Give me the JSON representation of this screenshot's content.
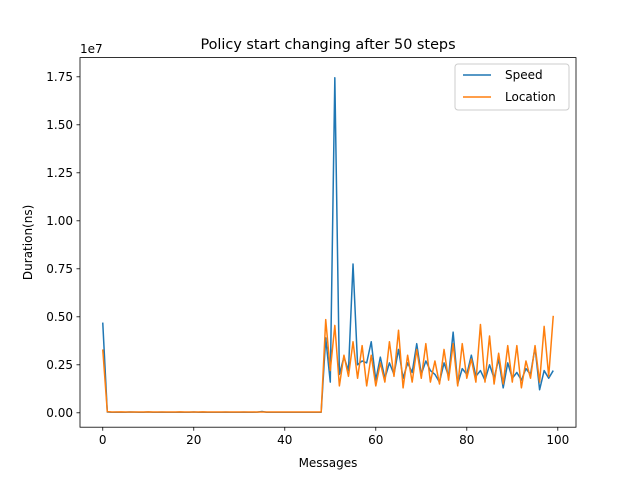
{
  "chart_data": {
    "type": "line",
    "title": "Policy start changing after 50 steps",
    "xlabel": "Messages",
    "ylabel": "Duration(ns)",
    "y_offset_label": "1e7",
    "xlim": [
      -5,
      104
    ],
    "ylim": [
      -750000,
      18500000
    ],
    "xticks": [
      0,
      20,
      40,
      60,
      80,
      100
    ],
    "xtick_labels": [
      "0",
      "20",
      "40",
      "60",
      "80",
      "100"
    ],
    "yticks": [
      0,
      2500000,
      5000000,
      7500000,
      10000000,
      12500000,
      15000000,
      17500000
    ],
    "ytick_labels": [
      "0.00",
      "0.25",
      "0.50",
      "0.75",
      "1.00",
      "1.25",
      "1.50",
      "1.75"
    ],
    "legend_position": "upper right",
    "grid": false,
    "x": [
      0,
      1,
      2,
      3,
      4,
      5,
      6,
      7,
      8,
      9,
      10,
      11,
      12,
      13,
      14,
      15,
      16,
      17,
      18,
      19,
      20,
      21,
      22,
      23,
      24,
      25,
      26,
      27,
      28,
      29,
      30,
      31,
      32,
      33,
      34,
      35,
      36,
      37,
      38,
      39,
      40,
      41,
      42,
      43,
      44,
      45,
      46,
      47,
      48,
      49,
      50,
      51,
      52,
      53,
      54,
      55,
      56,
      57,
      58,
      59,
      60,
      61,
      62,
      63,
      64,
      65,
      66,
      67,
      68,
      69,
      70,
      71,
      72,
      73,
      74,
      75,
      76,
      77,
      78,
      79,
      80,
      81,
      82,
      83,
      84,
      85,
      86,
      87,
      88,
      89,
      90,
      91,
      92,
      93,
      94,
      95,
      96,
      97,
      98,
      99
    ],
    "series": [
      {
        "name": "Speed",
        "color": "#1f77b4",
        "values": [
          4700000,
          40000,
          30000,
          35000,
          30000,
          30000,
          40000,
          35000,
          30000,
          30000,
          40000,
          30000,
          30000,
          35000,
          30000,
          30000,
          30000,
          35000,
          30000,
          30000,
          40000,
          30000,
          35000,
          30000,
          30000,
          30000,
          30000,
          35000,
          30000,
          30000,
          30000,
          35000,
          30000,
          30000,
          35000,
          70000,
          30000,
          30000,
          30000,
          30000,
          30000,
          30000,
          30000,
          30000,
          30000,
          30000,
          30000,
          30000,
          30000,
          3900000,
          1600000,
          17450000,
          2000000,
          2900000,
          2200000,
          7750000,
          2500000,
          2700000,
          2600000,
          3700000,
          1700000,
          2900000,
          1800000,
          2600000,
          2000000,
          3300000,
          1800000,
          2600000,
          2100000,
          3600000,
          2000000,
          2700000,
          2200000,
          2000000,
          1600000,
          2600000,
          1900000,
          4200000,
          1500000,
          2300000,
          2000000,
          3000000,
          1900000,
          2200000,
          1700000,
          2500000,
          1800000,
          2800000,
          1300000,
          2600000,
          1800000,
          2100000,
          1700000,
          2300000,
          2000000,
          3400000,
          1200000,
          2200000,
          1800000,
          2200000
        ]
      },
      {
        "name": "Location",
        "color": "#ff7f0e",
        "values": [
          3300000,
          60000,
          40000,
          40000,
          50000,
          40000,
          40000,
          45000,
          40000,
          40000,
          50000,
          40000,
          40000,
          45000,
          40000,
          40000,
          45000,
          50000,
          40000,
          45000,
          40000,
          40000,
          50000,
          40000,
          40000,
          40000,
          45000,
          40000,
          40000,
          45000,
          40000,
          40000,
          40000,
          40000,
          40000,
          40000,
          45000,
          40000,
          40000,
          40000,
          40000,
          40000,
          40000,
          40000,
          40000,
          40000,
          40000,
          40000,
          40000,
          4850000,
          2200000,
          4550000,
          1400000,
          3000000,
          1900000,
          3700000,
          1800000,
          3500000,
          1400000,
          3000000,
          1400000,
          2600000,
          1600000,
          3700000,
          1900000,
          4300000,
          1300000,
          3000000,
          1600000,
          3300000,
          1800000,
          3600000,
          1600000,
          2700000,
          1500000,
          3300000,
          1700000,
          3600000,
          1400000,
          3600000,
          1800000,
          2800000,
          1600000,
          4600000,
          1600000,
          4000000,
          1500000,
          3100000,
          1500000,
          3500000,
          1600000,
          3500000,
          1300000,
          2700000,
          1800000,
          3500000,
          1600000,
          4500000,
          1900000,
          5050000
        ]
      }
    ]
  }
}
